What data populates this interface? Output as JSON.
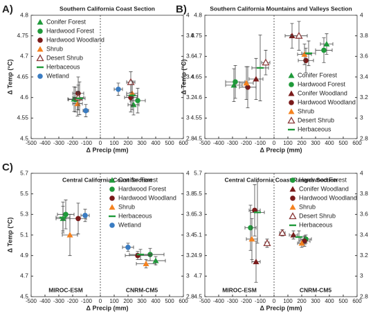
{
  "chart_data": [
    {
      "type": "scatter",
      "label": "A)",
      "title": "Southern California Coast Section",
      "xlabel": "Δ Precip (mm)",
      "ylabel": "Δ Temp (°C)",
      "xlim": [
        -500,
        600
      ],
      "xticks": [
        -500,
        -400,
        -300,
        -200,
        -100,
        0,
        100,
        200,
        300,
        400,
        500,
        600
      ],
      "ylim": [
        4.5,
        4.8
      ],
      "yticks": [
        4.5,
        4.55,
        4.6,
        4.65,
        4.7,
        4.75,
        4.8
      ],
      "y2lim": [
        2.8,
        4
      ],
      "y2ticks": [
        2.8,
        3,
        3.2,
        3.4,
        3.6,
        3.8,
        4
      ],
      "legend": "upper left",
      "series": [
        {
          "name": "Conifer Forest",
          "color": "#1f9a3a",
          "marker": "triangle",
          "points": [
            {
              "x": -190,
              "y": 4.596,
              "xerr": 45,
              "yerr": 0.03
            },
            {
              "x": 240,
              "y": 3.13,
              "xerr": 40,
              "yerr": 0.1,
              "axis": "y2"
            }
          ]
        },
        {
          "name": "Hardwood Forest",
          "color": "#1f9a3a",
          "marker": "circle",
          "points": [
            {
              "x": -180,
              "y": 4.595,
              "xerr": 50,
              "yerr": 0.03
            },
            {
              "x": 270,
              "y": 3.17,
              "xerr": 55,
              "yerr": 0.12,
              "axis": "y2"
            }
          ]
        },
        {
          "name": "Hardwood Woodland",
          "color": "#7a1a1a",
          "marker": "circle",
          "points": [
            {
              "x": -160,
              "y": 4.61,
              "xerr": 40,
              "yerr": 0.04
            },
            {
              "x": 220,
              "y": 3.2,
              "xerr": 45,
              "yerr": 0.14,
              "axis": "y2"
            }
          ]
        },
        {
          "name": "Shrub",
          "color": "#f5821f",
          "marker": "triangle",
          "points": [
            {
              "x": -165,
              "y": 4.585,
              "xerr": 35,
              "yerr": 0.03
            },
            {
              "x": 230,
              "y": 3.24,
              "xerr": 40,
              "yerr": 0.12,
              "axis": "y2"
            }
          ]
        },
        {
          "name": "Desert Shrub",
          "color": "#8b3a3a",
          "marker": "open-triangle",
          "points": [
            {
              "x": -160,
              "y": 4.6,
              "xerr": 40,
              "yerr": 0.03
            },
            {
              "x": 220,
              "y": 3.35,
              "xerr": 30,
              "yerr": 0.1,
              "axis": "y2"
            }
          ]
        },
        {
          "name": "Herbaceous",
          "color": "#1f9a3a",
          "marker": "dash",
          "points": [
            {
              "x": -150,
              "y": 4.598,
              "xerr": 40,
              "yerr": 0.04
            },
            {
              "x": 230,
              "y": 3.22,
              "xerr": 40,
              "yerr": 0.14,
              "axis": "y2"
            }
          ]
        },
        {
          "name": "Wetland",
          "color": "#3a7cc2",
          "marker": "circle",
          "points": [
            {
              "x": -105,
              "y": 4.568,
              "xerr": 20,
              "yerr": 0.015
            },
            {
              "x": 130,
              "y": 3.28,
              "xerr": 30,
              "yerr": 0.06,
              "axis": "y2"
            }
          ]
        }
      ]
    },
    {
      "type": "scatter",
      "label": "B)",
      "title": "Southern California Mountains and Valleys Section",
      "xlabel": "Δ Precip (mm)",
      "ylabel": "Δ Temp (°C)",
      "xlim": [
        -500,
        600
      ],
      "xticks": [
        -500,
        -400,
        -300,
        -200,
        -100,
        0,
        100,
        200,
        300,
        400,
        500,
        600
      ],
      "ylim": [
        4.5,
        4.8
      ],
      "yticks": [
        4.5,
        4.55,
        4.6,
        4.65,
        4.7,
        4.75,
        4.8
      ],
      "y2lim": [
        2.8,
        4
      ],
      "y2ticks": [
        2.8,
        3,
        3.2,
        3.4,
        3.6,
        3.8,
        4
      ],
      "legend": "lower right",
      "series": [
        {
          "name": "Conifer Forest",
          "color": "#1f9a3a",
          "marker": "triangle",
          "points": [
            {
              "x": -290,
              "y": 4.63,
              "xerr": 60,
              "yerr": 0.04
            },
            {
              "x": 380,
              "y": 3.72,
              "xerr": 45,
              "yerr": 0.1,
              "axis": "y2"
            }
          ]
        },
        {
          "name": "Hardwood Forest",
          "color": "#1f9a3a",
          "marker": "circle",
          "points": [
            {
              "x": -280,
              "y": 4.638,
              "xerr": 70,
              "yerr": 0.04
            },
            {
              "x": 360,
              "y": 3.66,
              "xerr": 60,
              "yerr": 0.12,
              "axis": "y2"
            }
          ]
        },
        {
          "name": "Conifer Woodland",
          "color": "#7a1a1a",
          "marker": "triangle",
          "points": [
            {
              "x": -130,
              "y": 4.645,
              "xerr": 50,
              "yerr": 0.05
            },
            {
              "x": 130,
              "y": 3.8,
              "xerr": 50,
              "yerr": 0.12,
              "axis": "y2"
            }
          ]
        },
        {
          "name": "Hardwood Woodland",
          "color": "#7a1a1a",
          "marker": "circle",
          "points": [
            {
              "x": -190,
              "y": 4.625,
              "xerr": 60,
              "yerr": 0.05
            },
            {
              "x": 230,
              "y": 3.56,
              "xerr": 55,
              "yerr": 0.12,
              "axis": "y2"
            }
          ]
        },
        {
          "name": "Shrub",
          "color": "#f5821f",
          "marker": "triangle",
          "points": [
            {
              "x": -200,
              "y": 4.635,
              "xerr": 50,
              "yerr": 0.04
            },
            {
              "x": 220,
              "y": 3.62,
              "xerr": 50,
              "yerr": 0.1,
              "axis": "y2"
            }
          ]
        },
        {
          "name": "Desert Shrub",
          "color": "#8b3a3a",
          "marker": "open-triangle",
          "points": [
            {
              "x": -60,
              "y": 4.685,
              "xerr": 30,
              "yerr": 0.03
            },
            {
              "x": 180,
              "y": 3.8,
              "xerr": 60,
              "yerr": 0.14,
              "axis": "y2"
            }
          ]
        },
        {
          "name": "Herbaceous",
          "color": "#1f9a3a",
          "marker": "dash",
          "points": [
            {
              "x": -100,
              "y": 4.672,
              "xerr": 60,
              "yerr": 0.08
            },
            {
              "x": 250,
              "y": 3.63,
              "xerr": 50,
              "yerr": 0.12,
              "axis": "y2"
            }
          ]
        }
      ]
    },
    {
      "type": "scatter",
      "label": "C)",
      "title": "Central California Coast Section",
      "xlabel": "Δ Precip (mm)",
      "ylabel": "Δ Temp (°C)",
      "xlim": [
        -500,
        600
      ],
      "xticks": [
        -500,
        -400,
        -300,
        -200,
        -100,
        0,
        100,
        200,
        300,
        400,
        500,
        600
      ],
      "ylim": [
        4.5,
        5.7
      ],
      "yticks": [
        4.5,
        4.7,
        4.9,
        5.1,
        5.3,
        5.5,
        5.7
      ],
      "y2lim": [
        2.8,
        4
      ],
      "y2ticks": [
        2.8,
        3,
        3.2,
        3.4,
        3.6,
        3.8,
        4
      ],
      "legend": "upper center",
      "annotations": [
        "MIROC-ESM",
        "CNRM-CM5"
      ],
      "series": [
        {
          "name": "Conifer Forest",
          "color": "#1f9a3a",
          "marker": "triangle",
          "points": [
            {
              "x": -270,
              "y": 5.26,
              "xerr": 50,
              "yerr": 0.12
            },
            {
              "x": 400,
              "y": 3.15,
              "xerr": 70,
              "yerr": 0.04,
              "axis": "y2"
            }
          ]
        },
        {
          "name": "Hardwood Forest",
          "color": "#1f9a3a",
          "marker": "circle",
          "points": [
            {
              "x": -250,
              "y": 5.3,
              "xerr": 60,
              "yerr": 0.14
            },
            {
              "x": 360,
              "y": 3.21,
              "xerr": 100,
              "yerr": 0.06,
              "axis": "y2"
            }
          ]
        },
        {
          "name": "Hardwood Woodland",
          "color": "#7a1a1a",
          "marker": "circle",
          "points": [
            {
              "x": -160,
              "y": 5.26,
              "xerr": 60,
              "yerr": 0.15
            },
            {
              "x": 270,
              "y": 3.2,
              "xerr": 90,
              "yerr": 0.04,
              "axis": "y2"
            }
          ]
        },
        {
          "name": "Shrub",
          "color": "#f5821f",
          "marker": "triangle",
          "points": [
            {
              "x": -220,
              "y": 5.1,
              "xerr": 55,
              "yerr": 0.2
            },
            {
              "x": 330,
              "y": 3.12,
              "xerr": 70,
              "yerr": 0.04,
              "axis": "y2"
            }
          ]
        },
        {
          "name": "Herbaceous",
          "color": "#1f9a3a",
          "marker": "dash",
          "points": [
            {
              "x": -270,
              "y": 5.27,
              "xerr": 50,
              "yerr": 0.15
            },
            {
              "x": 290,
              "y": 3.21,
              "xerr": 80,
              "yerr": 0.05,
              "axis": "y2"
            }
          ]
        },
        {
          "name": "Wetland",
          "color": "#3a7cc2",
          "marker": "circle",
          "points": [
            {
              "x": -110,
              "y": 5.29,
              "xerr": 30,
              "yerr": 0.06
            },
            {
              "x": 200,
              "y": 3.28,
              "xerr": 40,
              "yerr": 0.04,
              "axis": "y2"
            }
          ]
        }
      ]
    },
    {
      "type": "scatter",
      "title": "Central California Coast Ranges Section",
      "xlabel": "Δ Precip (mm)",
      "xlim": [
        -500,
        600
      ],
      "xticks": [
        -500,
        -400,
        -300,
        -200,
        -100,
        0,
        100,
        200,
        300,
        400,
        500,
        600
      ],
      "ylim": [
        4.5,
        5.7
      ],
      "yticks": [
        4.5,
        4.7,
        4.9,
        5.1,
        5.3,
        5.5,
        5.7
      ],
      "y2lim": [
        2.8,
        4
      ],
      "y2ticks": [
        2.8,
        3,
        3.2,
        3.4,
        3.6,
        3.8,
        4
      ],
      "legend": "upper right",
      "annotations": [
        "MIROC-ESM",
        "CNRM-CM5"
      ],
      "series": [
        {
          "name": "Hardwood Forest",
          "color": "#1f9a3a",
          "marker": "circle",
          "points": [
            {
              "x": -170,
              "y": 5.17,
              "xerr": 40,
              "yerr": 0.22
            },
            {
              "x": 230,
              "y": 3.36,
              "xerr": 40,
              "yerr": 0.04,
              "axis": "y2"
            }
          ]
        },
        {
          "name": "Conifer Woodland",
          "color": "#7a1a1a",
          "marker": "triangle",
          "points": [
            {
              "x": -130,
              "y": 4.84,
              "xerr": 30,
              "yerr": 0.2
            },
            {
              "x": 140,
              "y": 3.4,
              "xerr": 30,
              "yerr": 0.04,
              "axis": "y2"
            }
          ]
        },
        {
          "name": "Hardwood Woodland",
          "color": "#7a1a1a",
          "marker": "circle",
          "points": [
            {
              "x": -140,
              "y": 5.34,
              "xerr": 40,
              "yerr": 0.25
            },
            {
              "x": 220,
              "y": 3.34,
              "xerr": 40,
              "yerr": 0.05,
              "axis": "y2"
            }
          ]
        },
        {
          "name": "Shrub",
          "color": "#f5821f",
          "marker": "triangle",
          "points": [
            {
              "x": -160,
              "y": 5.06,
              "xerr": 40,
              "yerr": 0.2
            },
            {
              "x": 200,
              "y": 3.32,
              "xerr": 30,
              "yerr": 0.04,
              "axis": "y2"
            }
          ]
        },
        {
          "name": "Desert Shrub",
          "color": "#8b3a3a",
          "marker": "open-triangle",
          "points": [
            {
              "x": -50,
              "y": 5.02,
              "xerr": 15,
              "yerr": 0.04
            },
            {
              "x": 60,
              "y": 3.42,
              "xerr": 20,
              "yerr": 0.03,
              "axis": "y2"
            }
          ]
        },
        {
          "name": "Herbaceous",
          "color": "#1f9a3a",
          "marker": "dash",
          "points": [
            {
              "x": -120,
              "y": 5.32,
              "xerr": 50,
              "yerr": 0.3
            },
            {
              "x": 180,
              "y": 3.38,
              "xerr": 40,
              "yerr": 0.06,
              "axis": "y2"
            }
          ]
        }
      ]
    }
  ]
}
